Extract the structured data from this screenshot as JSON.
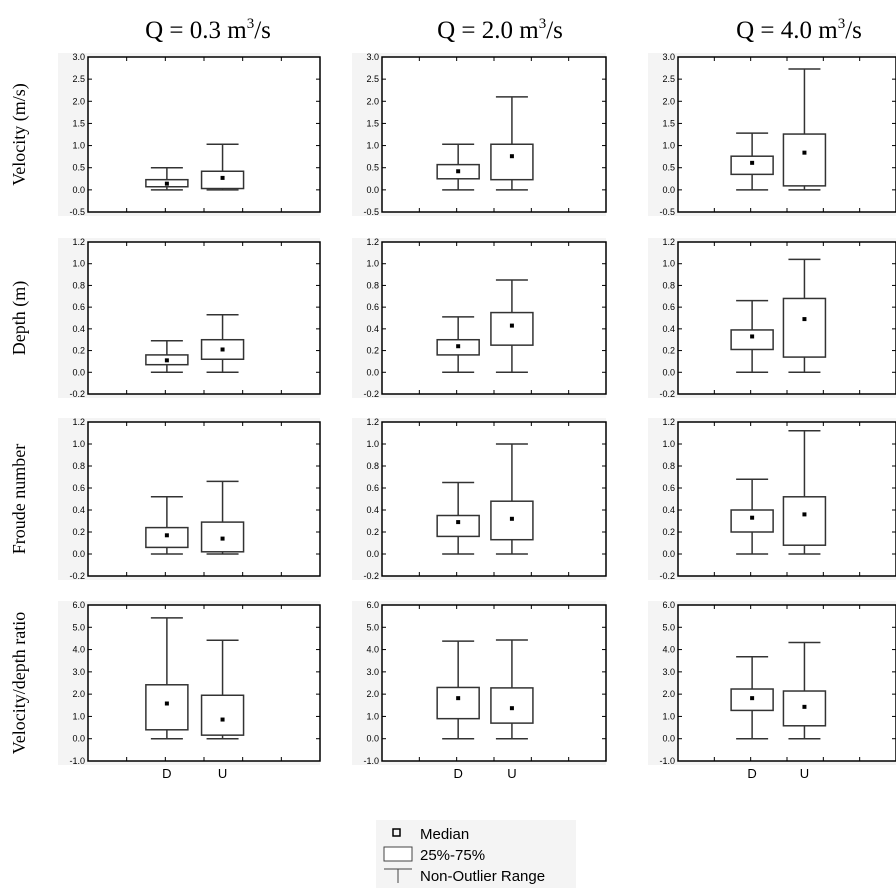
{
  "columns": [
    {
      "title_prefix": "Q = 0.3 m",
      "title_sup": "3",
      "title_suffix": "/s"
    },
    {
      "title_prefix": "Q = 2.0 m",
      "title_sup": "3",
      "title_suffix": "/s"
    },
    {
      "title_prefix": "Q = 4.0 m",
      "title_sup": "3",
      "title_suffix": "/s"
    }
  ],
  "rows": [
    {
      "label": "Velocity (m/s)",
      "ylim": [
        -0.5,
        3.0
      ],
      "ticks": [
        "3.0",
        "2.5",
        "2.0",
        "1.5",
        "1.0",
        "0.5",
        "0.0",
        "-0.5"
      ]
    },
    {
      "label": "Depth (m)",
      "ylim": [
        -0.2,
        1.2
      ],
      "ticks": [
        "1.2",
        "1.0",
        "0.8",
        "0.6",
        "0.4",
        "0.2",
        "0.0",
        "-0.2"
      ]
    },
    {
      "label": "Froude number",
      "ylim": [
        -0.2,
        1.2
      ],
      "ticks": [
        "1.2",
        "1.0",
        "0.8",
        "0.6",
        "0.4",
        "0.2",
        "0.0",
        "-0.2"
      ]
    },
    {
      "label": "Velocity/depth ratio",
      "ylim": [
        -1.0,
        6.0
      ],
      "ticks": [
        "6.0",
        "5.0",
        "4.0",
        "3.0",
        "2.0",
        "1.0",
        "0.0",
        "-1.0"
      ]
    }
  ],
  "categories": [
    "D",
    "U"
  ],
  "legend": {
    "median": "Median",
    "box": "25%-75%",
    "whisker": "Non-Outlier Range"
  },
  "chart_data": {
    "type": "box",
    "categories": [
      "D",
      "U"
    ],
    "panels": [
      {
        "row": 0,
        "col": 0,
        "boxes": [
          {
            "cat": "D",
            "min": 0.0,
            "q1": 0.07,
            "median": 0.14,
            "q3": 0.23,
            "max": 0.5
          },
          {
            "cat": "U",
            "min": 0.0,
            "q1": 0.03,
            "median": 0.27,
            "q3": 0.42,
            "max": 1.03
          }
        ]
      },
      {
        "row": 0,
        "col": 1,
        "boxes": [
          {
            "cat": "D",
            "min": 0.0,
            "q1": 0.25,
            "median": 0.42,
            "q3": 0.57,
            "max": 1.03
          },
          {
            "cat": "U",
            "min": 0.0,
            "q1": 0.23,
            "median": 0.76,
            "q3": 1.03,
            "max": 2.1
          }
        ]
      },
      {
        "row": 0,
        "col": 2,
        "boxes": [
          {
            "cat": "D",
            "min": 0.0,
            "q1": 0.35,
            "median": 0.61,
            "q3": 0.76,
            "max": 1.28
          },
          {
            "cat": "U",
            "min": 0.0,
            "q1": 0.09,
            "median": 0.84,
            "q3": 1.26,
            "max": 2.73
          }
        ]
      },
      {
        "row": 1,
        "col": 0,
        "boxes": [
          {
            "cat": "D",
            "min": 0.0,
            "q1": 0.07,
            "median": 0.11,
            "q3": 0.16,
            "max": 0.29
          },
          {
            "cat": "U",
            "min": 0.0,
            "q1": 0.12,
            "median": 0.21,
            "q3": 0.3,
            "max": 0.53
          }
        ]
      },
      {
        "row": 1,
        "col": 1,
        "boxes": [
          {
            "cat": "D",
            "min": 0.0,
            "q1": 0.16,
            "median": 0.24,
            "q3": 0.3,
            "max": 0.51
          },
          {
            "cat": "U",
            "min": 0.0,
            "q1": 0.25,
            "median": 0.43,
            "q3": 0.55,
            "max": 0.85
          }
        ]
      },
      {
        "row": 1,
        "col": 2,
        "boxes": [
          {
            "cat": "D",
            "min": 0.0,
            "q1": 0.21,
            "median": 0.33,
            "q3": 0.39,
            "max": 0.66
          },
          {
            "cat": "U",
            "min": 0.0,
            "q1": 0.14,
            "median": 0.49,
            "q3": 0.68,
            "max": 1.04
          }
        ]
      },
      {
        "row": 2,
        "col": 0,
        "boxes": [
          {
            "cat": "D",
            "min": 0.0,
            "q1": 0.06,
            "median": 0.17,
            "q3": 0.24,
            "max": 0.52
          },
          {
            "cat": "U",
            "min": 0.0,
            "q1": 0.02,
            "median": 0.14,
            "q3": 0.29,
            "max": 0.66
          }
        ]
      },
      {
        "row": 2,
        "col": 1,
        "boxes": [
          {
            "cat": "D",
            "min": 0.0,
            "q1": 0.16,
            "median": 0.29,
            "q3": 0.35,
            "max": 0.65
          },
          {
            "cat": "U",
            "min": 0.0,
            "q1": 0.13,
            "median": 0.32,
            "q3": 0.48,
            "max": 1.0
          }
        ]
      },
      {
        "row": 2,
        "col": 2,
        "boxes": [
          {
            "cat": "D",
            "min": 0.0,
            "q1": 0.2,
            "median": 0.33,
            "q3": 0.4,
            "max": 0.68
          },
          {
            "cat": "U",
            "min": 0.0,
            "q1": 0.08,
            "median": 0.36,
            "q3": 0.52,
            "max": 1.12
          }
        ]
      },
      {
        "row": 3,
        "col": 0,
        "boxes": [
          {
            "cat": "D",
            "min": 0.0,
            "q1": 0.4,
            "median": 1.58,
            "q3": 2.42,
            "max": 5.42
          },
          {
            "cat": "U",
            "min": 0.0,
            "q1": 0.16,
            "median": 0.86,
            "q3": 1.95,
            "max": 4.42
          }
        ]
      },
      {
        "row": 3,
        "col": 1,
        "boxes": [
          {
            "cat": "D",
            "min": 0.0,
            "q1": 0.9,
            "median": 1.82,
            "q3": 2.3,
            "max": 4.38
          },
          {
            "cat": "U",
            "min": 0.0,
            "q1": 0.7,
            "median": 1.37,
            "q3": 2.28,
            "max": 4.43
          }
        ]
      },
      {
        "row": 3,
        "col": 2,
        "boxes": [
          {
            "cat": "D",
            "min": 0.0,
            "q1": 1.27,
            "median": 1.82,
            "q3": 2.23,
            "max": 3.68
          },
          {
            "cat": "U",
            "min": 0.0,
            "q1": 0.58,
            "median": 1.43,
            "q3": 2.14,
            "max": 4.32
          }
        ]
      }
    ],
    "grid": false
  }
}
